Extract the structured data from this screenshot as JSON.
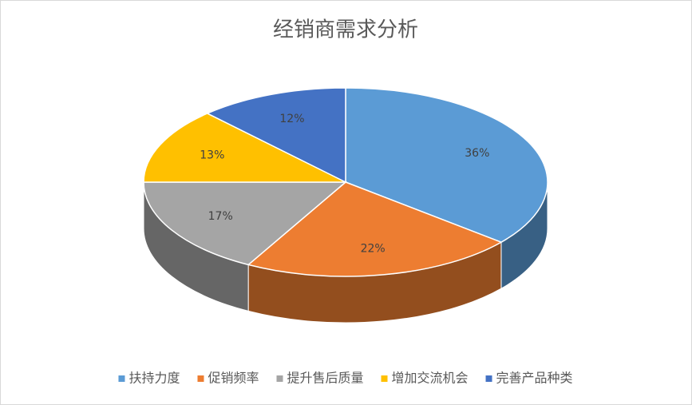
{
  "chart_data": {
    "type": "pie",
    "title": "经销商需求分析",
    "categories": [
      "扶持力度",
      "促销频率",
      "提升售后质量",
      "增加交流机会",
      "完善产品种类"
    ],
    "values": [
      36,
      22,
      17,
      13,
      12
    ],
    "value_labels": [
      "36%",
      "22%",
      "17%",
      "13%",
      "12%"
    ],
    "colors": [
      "#5b9bd5",
      "#ed7d31",
      "#a5a5a5",
      "#ffc000",
      "#4472c4"
    ],
    "legend": "bottom"
  }
}
